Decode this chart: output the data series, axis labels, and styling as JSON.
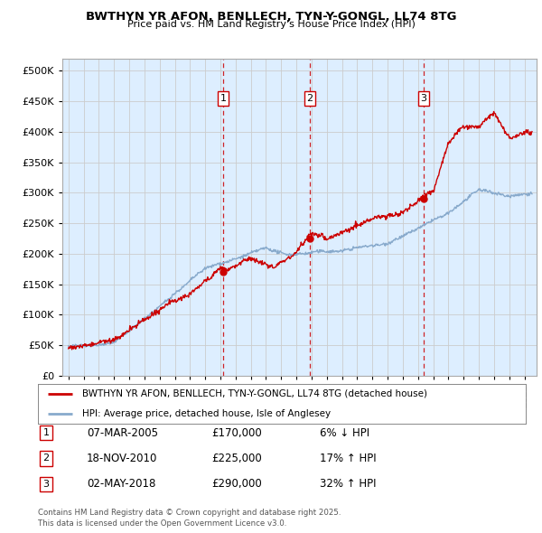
{
  "title": "BWTHYN YR AFON, BENLLECH, TYN-Y-GONGL, LL74 8TG",
  "subtitle": "Price paid vs. HM Land Registry's House Price Index (HPI)",
  "plot_bg_color": "#ddeeff",
  "legend_line1": "BWTHYN YR AFON, BENLLECH, TYN-Y-GONGL, LL74 8TG (detached house)",
  "legend_line2": "HPI: Average price, detached house, Isle of Anglesey",
  "sales": [
    {
      "num": 1,
      "date": "07-MAR-2005",
      "price": 170000,
      "rel": "6% ↓ HPI",
      "x_year": 2005.18
    },
    {
      "num": 2,
      "date": "18-NOV-2010",
      "price": 225000,
      "rel": "17% ↑ HPI",
      "x_year": 2010.88
    },
    {
      "num": 3,
      "date": "02-MAY-2018",
      "price": 290000,
      "rel": "32% ↑ HPI",
      "x_year": 2018.37
    }
  ],
  "footer1": "Contains HM Land Registry data © Crown copyright and database right 2025.",
  "footer2": "This data is licensed under the Open Government Licence v3.0.",
  "ylim": [
    0,
    520000
  ],
  "yticks": [
    0,
    50000,
    100000,
    150000,
    200000,
    250000,
    300000,
    350000,
    400000,
    450000,
    500000
  ],
  "xlim_start": 1994.6,
  "xlim_end": 2025.8,
  "red_color": "#cc0000",
  "blue_color": "#88aacc"
}
